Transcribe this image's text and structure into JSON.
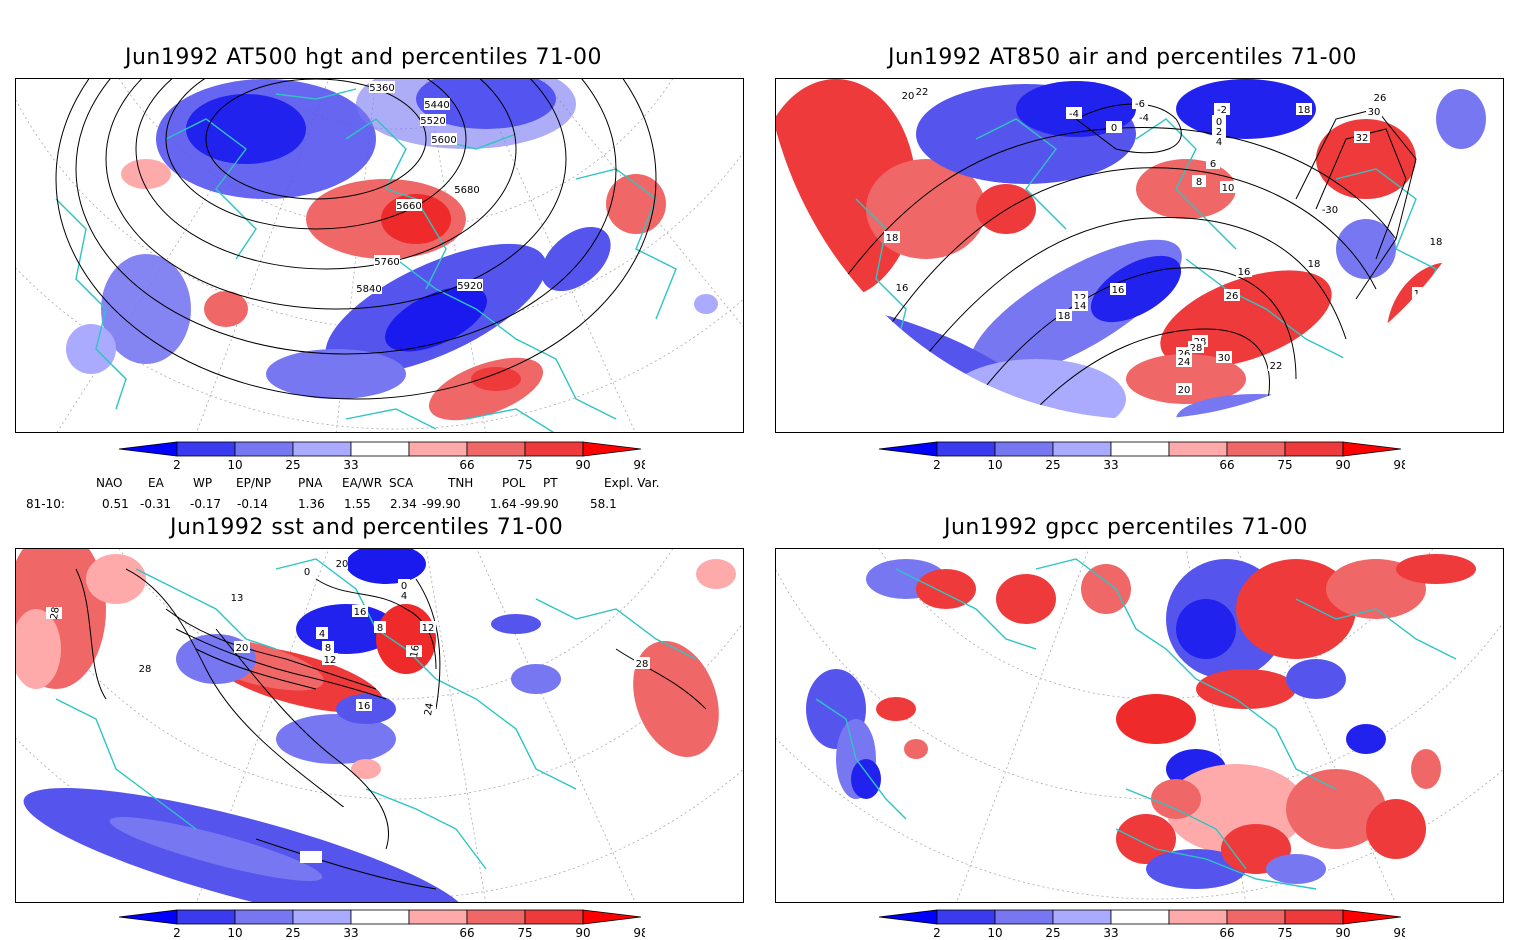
{
  "panels": [
    {
      "title": "Jun1992 AT500 hgt and percentiles 71-00",
      "contour_labels": [
        "5360",
        "5440",
        "5520",
        "5600",
        "5680",
        "5660",
        "5760",
        "5840",
        "5920"
      ]
    },
    {
      "title": "Jun1992 AT850 air and percentiles 71-00",
      "contour_labels": [
        "22",
        "20",
        "-4",
        "0",
        "-6",
        "-4",
        "-2",
        "0",
        "2",
        "4",
        "6",
        "8",
        "10",
        "18",
        "30",
        "32",
        "26",
        "-30",
        "18",
        "16",
        "18",
        "16",
        "12",
        "14",
        "16",
        "18",
        "26",
        "28",
        "30",
        "28",
        "26",
        "24",
        "22",
        "20",
        "18",
        "16"
      ]
    },
    {
      "title": "Jun1992 sst and percentiles 71-00",
      "contour_labels": [
        "28",
        "13",
        "28",
        "20",
        "0",
        "4",
        "8",
        "12",
        "16",
        "0",
        "4",
        "8",
        "12",
        "16",
        "20",
        "16",
        "24",
        "28"
      ]
    },
    {
      "title": "Jun1992 gpcc percentiles 71-00",
      "contour_labels": []
    }
  ],
  "colorbar": {
    "labels": [
      "2",
      "10",
      "25",
      "33",
      "66",
      "75",
      "90",
      "98"
    ],
    "colors": [
      "#0000ff",
      "#3a3aee",
      "#7777f2",
      "#aaaaff",
      "#ffffff",
      "#ffaaaa",
      "#f06767",
      "#ee3a3a",
      "#ff0000"
    ]
  },
  "teleconnections": {
    "headers": [
      "NAO",
      "EA",
      "WP",
      "EP/NP",
      "PNA",
      "EA/WR",
      "SCA",
      "TNH",
      "POL",
      "PT",
      "Expl. Var."
    ],
    "row_label": "81-10:",
    "values": [
      "0.51",
      "-0.31",
      "-0.17",
      "-0.14",
      "1.36",
      "1.55",
      "2.34",
      "-99.90",
      "1.64",
      "-99.90",
      "58.1"
    ]
  }
}
